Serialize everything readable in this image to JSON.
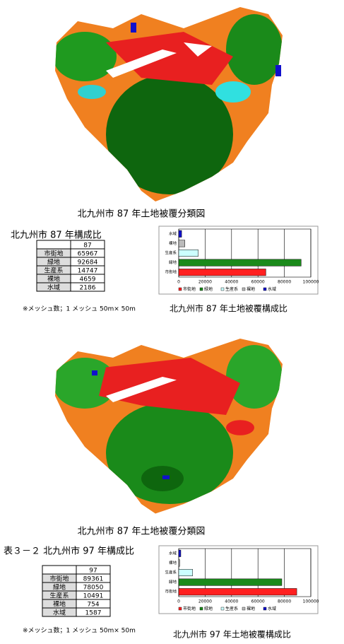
{
  "sections": [
    {
      "map_caption": "北九州市 87 年土地被覆分類図",
      "table": {
        "title": "北九州市 87 年構成比",
        "header": "87",
        "rows": [
          [
            "市街地",
            65967
          ],
          [
            "緑地",
            92684
          ],
          [
            "生産系",
            14747
          ],
          [
            "裸地",
            4659
          ],
          [
            "水域",
            2186
          ]
        ]
      },
      "note": "※メッシュ数；1 メッシュ 50m× 50m",
      "chart": {
        "type": "bar",
        "orientation": "horizontal",
        "title": "北九州市 87 年土地被覆構成比",
        "categories": [
          "市街地",
          "緑地",
          "生産系",
          "裸地",
          "水域"
        ],
        "colors": [
          "#ff2020",
          "#1a8a1a",
          "#ccffff",
          "#bbbbbb",
          "#1010cc"
        ],
        "xlim": [
          0,
          100000
        ],
        "xticks": [
          0,
          20000,
          40000,
          60000,
          80000,
          100000
        ],
        "grid": true
      }
    },
    {
      "map_caption": "北九州市 87 年土地被覆分類図",
      "table": {
        "title": "表３－２ 北九州市 97 年構成比",
        "header": "97",
        "rows": [
          [
            "市街地",
            89361
          ],
          [
            "緑地",
            78050
          ],
          [
            "生産系",
            10491
          ],
          [
            "裸地",
            754
          ],
          [
            "水域",
            1587
          ]
        ]
      },
      "note": "※メッシュ数；1 メッシュ 50m× 50m",
      "chart": {
        "type": "bar",
        "orientation": "horizontal",
        "title": "北九州市 97 年土地被覆構成比",
        "categories": [
          "市街地",
          "緑地",
          "生産系",
          "裸地",
          "水域"
        ],
        "colors": [
          "#ff2020",
          "#1a8a1a",
          "#ccffff",
          "#bbbbbb",
          "#1010cc"
        ],
        "xlim": [
          0,
          100000
        ],
        "xticks": [
          0,
          20000,
          40000,
          60000,
          80000,
          100000
        ],
        "grid": true
      }
    }
  ]
}
